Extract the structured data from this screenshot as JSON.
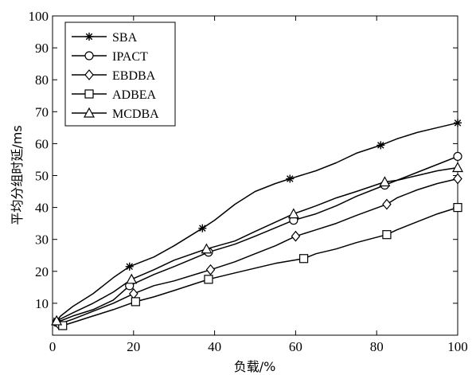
{
  "chart_data": {
    "type": "line",
    "xlabel": "负载/%",
    "ylabel": "平均分组时延/ms",
    "xlim": [
      0,
      100
    ],
    "ylim": [
      0,
      100
    ],
    "xticks": [
      "0",
      "20",
      "40",
      "60",
      "80",
      "100"
    ],
    "yticks": [
      "10",
      "20",
      "30",
      "40",
      "50",
      "60",
      "70",
      "80",
      "90",
      "100"
    ],
    "legend_position": "top-left",
    "grid": false,
    "series": [
      {
        "name": "SBA",
        "marker": "asterisk",
        "x": [
          1,
          2,
          5,
          10,
          15,
          19,
          25,
          30,
          37,
          40,
          45,
          50,
          55,
          58.6,
          65,
          70,
          75,
          81,
          85,
          90,
          95,
          100
        ],
        "y": [
          4.5,
          6,
          9,
          13,
          18,
          21.5,
          24.5,
          28,
          33.5,
          36,
          41,
          45,
          47.5,
          49,
          51.5,
          54,
          57,
          59.5,
          61.5,
          63.5,
          65,
          66.5
        ],
        "marker_x": [
          1,
          19,
          37,
          58.6,
          81,
          100
        ],
        "marker_y": [
          4.5,
          21.5,
          33.5,
          49,
          59.5,
          66.5
        ]
      },
      {
        "name": "IPACT",
        "marker": "circle",
        "x": [
          1,
          5,
          10,
          15,
          19,
          25,
          30,
          38.5,
          45,
          50,
          59.5,
          65,
          70,
          75,
          82,
          85,
          90,
          95,
          100
        ],
        "y": [
          4,
          6,
          8,
          11,
          15.5,
          19,
          21.5,
          26,
          28.5,
          31,
          36,
          38,
          40.5,
          43.5,
          47,
          48.5,
          51,
          53.5,
          56
        ],
        "marker_x": [
          1,
          19,
          38.5,
          59.5,
          82,
          100
        ],
        "marker_y": [
          4,
          15.5,
          26,
          36,
          47,
          56
        ]
      },
      {
        "name": "EBDBA",
        "marker": "diamond",
        "x": [
          1.5,
          5,
          10,
          15,
          20,
          25,
          30,
          39,
          45,
          50,
          55,
          60,
          65,
          70,
          75,
          82.5,
          85,
          90,
          95,
          100
        ],
        "y": [
          3.5,
          5,
          7.5,
          10,
          13,
          15.5,
          17,
          20.5,
          23,
          25.5,
          28,
          31,
          33,
          35,
          37.5,
          41,
          43,
          45.5,
          47.5,
          49
        ],
        "marker_x": [
          1.5,
          20,
          39,
          60,
          82.5,
          100
        ],
        "marker_y": [
          3.5,
          13,
          20.5,
          31,
          41,
          49
        ]
      },
      {
        "name": "ADBEA",
        "marker": "square",
        "x": [
          2.5,
          5,
          10,
          15,
          20.5,
          25,
          30,
          38.5,
          45,
          50,
          55,
          62,
          65,
          70,
          75,
          82.5,
          85,
          90,
          95,
          100
        ],
        "y": [
          3,
          4,
          6,
          8,
          10.5,
          12,
          14,
          17.5,
          19.5,
          21,
          22.5,
          24,
          25.5,
          27,
          29,
          31.5,
          33,
          35.5,
          38,
          40
        ],
        "marker_x": [
          2.5,
          20.5,
          38.5,
          62,
          82.5,
          100
        ],
        "marker_y": [
          3,
          10.5,
          17.5,
          24,
          31.5,
          40
        ]
      },
      {
        "name": "MCDBA",
        "marker": "triangle",
        "x": [
          1,
          5,
          10,
          15,
          19.5,
          25,
          30,
          38,
          45,
          50,
          59.5,
          65,
          70,
          75,
          82,
          85,
          90,
          95,
          100
        ],
        "y": [
          4.5,
          7,
          10,
          13.5,
          17.5,
          20.5,
          23.5,
          27,
          29.5,
          32.5,
          38,
          40.5,
          43,
          45,
          48,
          48.5,
          50,
          51.5,
          52.5
        ],
        "marker_x": [
          1,
          19.5,
          38,
          59.5,
          82,
          100
        ],
        "marker_y": [
          4.5,
          17.5,
          27,
          38,
          48,
          52.5
        ]
      }
    ]
  }
}
